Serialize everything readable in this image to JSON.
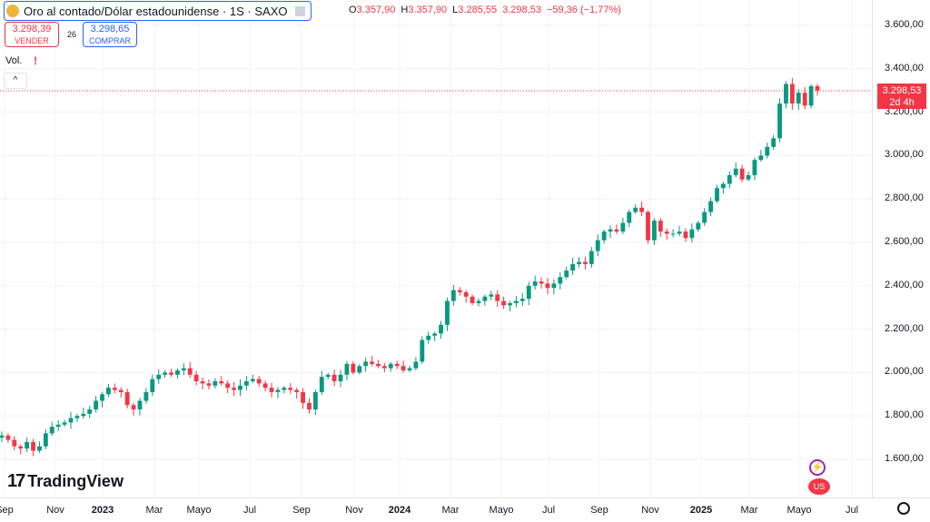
{
  "header": {
    "symbol_title": "Oro al contado/Dólar estadounidense · 1S · SAXO",
    "ohlc": [
      {
        "k": "O",
        "v": "3.357,90"
      },
      {
        "k": "H",
        "v": "3.357,90"
      },
      {
        "k": "L",
        "v": "3.285,55"
      },
      {
        "k": "",
        "v": "3.298,53"
      },
      {
        "k": "",
        "v": "−59,36 (−1,77%)"
      }
    ]
  },
  "trade": {
    "sell_price": "3.298,39",
    "sell_label": "VENDER",
    "spread": "26",
    "buy_price": "3.298,65",
    "buy_label": "COMPRAR"
  },
  "indicators": {
    "volume_label": "Vol.",
    "alert_icon": "exclamation-icon",
    "collapse_icon": "chevron-up-icon"
  },
  "last_price": {
    "price": "3.298,53",
    "countdown": "2d 4h"
  },
  "branding": {
    "logo_text": "TradingView"
  },
  "colors": {
    "up": "#089981",
    "down": "#f23645",
    "accent": "#2962ff"
  },
  "chart_data": {
    "type": "candlestick",
    "timeframe": "1S",
    "ylim": [
      1450,
      3650
    ],
    "y_ticks": [
      "3.600,00",
      "3.400,00",
      "3.200,00",
      "3.000,00",
      "2.800,00",
      "2.600,00",
      "2.400,00",
      "2.200,00",
      "2.000,00",
      "1.800,00",
      "1.600,00"
    ],
    "x_ticks": [
      {
        "label": "Sep",
        "bold": false
      },
      {
        "label": "Nov",
        "bold": false
      },
      {
        "label": "2023",
        "bold": true
      },
      {
        "label": "Mar",
        "bold": false
      },
      {
        "label": "Mayo",
        "bold": false
      },
      {
        "label": "Jul",
        "bold": false
      },
      {
        "label": "Sep",
        "bold": false
      },
      {
        "label": "Nov",
        "bold": false
      },
      {
        "label": "2024",
        "bold": true
      },
      {
        "label": "Mar",
        "bold": false
      },
      {
        "label": "Mayo",
        "bold": false
      },
      {
        "label": "Jul",
        "bold": false
      },
      {
        "label": "Sep",
        "bold": false
      },
      {
        "label": "Nov",
        "bold": false
      },
      {
        "label": "2025",
        "bold": true
      },
      {
        "label": "Mar",
        "bold": false
      },
      {
        "label": "Mayo",
        "bold": false
      },
      {
        "label": "Jul",
        "bold": false
      }
    ],
    "last_price": 3298.53,
    "closes": [
      1710,
      1690,
      1660,
      1650,
      1680,
      1640,
      1660,
      1720,
      1750,
      1760,
      1770,
      1790,
      1800,
      1810,
      1830,
      1870,
      1900,
      1930,
      1920,
      1910,
      1850,
      1830,
      1870,
      1910,
      1970,
      1990,
      2000,
      1990,
      2010,
      2020,
      1990,
      1960,
      1950,
      1940,
      1960,
      1950,
      1930,
      1920,
      1940,
      1960,
      1970,
      1950,
      1930,
      1910,
      1920,
      1930,
      1920,
      1910,
      1860,
      1830,
      1910,
      1980,
      1990,
      1960,
      1990,
      2040,
      2000,
      2030,
      2050,
      2040,
      2030,
      2020,
      2040,
      2030,
      2010,
      2020,
      2050,
      2150,
      2170,
      2180,
      2220,
      2330,
      2380,
      2370,
      2350,
      2320,
      2330,
      2350,
      2360,
      2330,
      2310,
      2320,
      2330,
      2340,
      2400,
      2420,
      2410,
      2390,
      2410,
      2440,
      2470,
      2500,
      2510,
      2500,
      2560,
      2610,
      2650,
      2660,
      2650,
      2690,
      2740,
      2760,
      2740,
      2610,
      2700,
      2650,
      2640,
      2640,
      2650,
      2620,
      2660,
      2690,
      2740,
      2790,
      2850,
      2870,
      2910,
      2940,
      2890,
      2910,
      2980,
      3000,
      3040,
      3080,
      3240,
      3330,
      3240,
      3290,
      3230,
      3320,
      3300
    ]
  }
}
